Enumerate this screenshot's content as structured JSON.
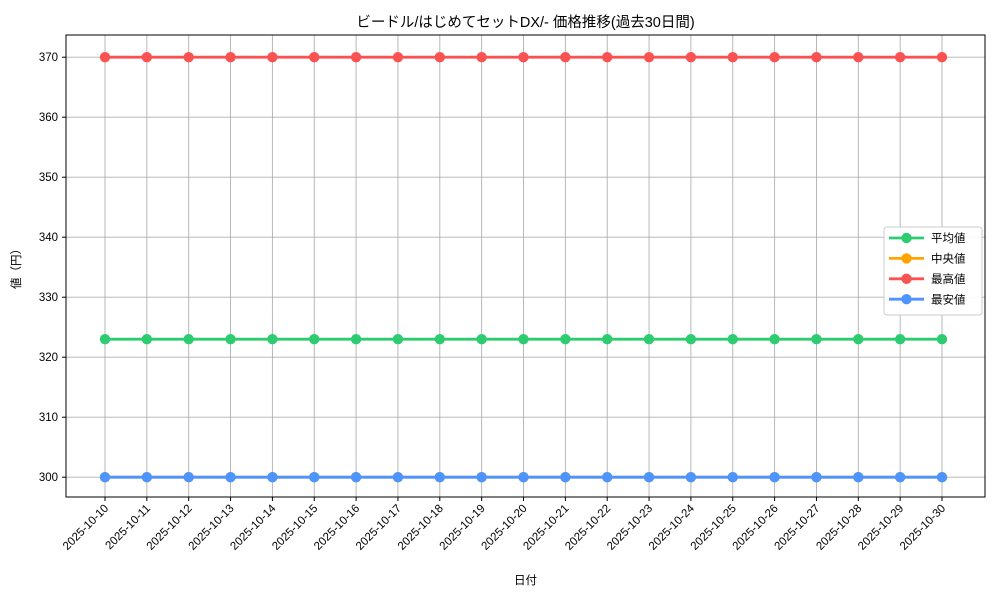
{
  "chart_data": {
    "type": "line",
    "title": "ビードル/はじめてセットDX/- 価格推移(過去30日間)",
    "xlabel": "日付",
    "ylabel": "値（円）",
    "grid": true,
    "background": "#ffffff",
    "grid_color": "#b0b0b0",
    "axis_color": "#000000",
    "legend_position": "center right",
    "legend_border_color": "#cccccc",
    "yticks": [
      300,
      310,
      320,
      330,
      340,
      350,
      360,
      370
    ],
    "ylim": [
      296.7,
      373.7
    ],
    "x": [
      "2025-10-10",
      "2025-10-11",
      "2025-10-12",
      "2025-10-13",
      "2025-10-14",
      "2025-10-15",
      "2025-10-16",
      "2025-10-17",
      "2025-10-18",
      "2025-10-19",
      "2025-10-20",
      "2025-10-21",
      "2025-10-22",
      "2025-10-23",
      "2025-10-24",
      "2025-10-25",
      "2025-10-26",
      "2025-10-27",
      "2025-10-28",
      "2025-10-29",
      "2025-10-30"
    ],
    "series": [
      {
        "name": "平均値",
        "key": "average",
        "color": "#2ecc71",
        "values": [
          323,
          323,
          323,
          323,
          323,
          323,
          323,
          323,
          323,
          323,
          323,
          323,
          323,
          323,
          323,
          323,
          323,
          323,
          323,
          323,
          323
        ]
      },
      {
        "name": "中央値",
        "key": "median",
        "color": "#ffa500",
        "hidden_behind": "最安値",
        "values": [
          300,
          300,
          300,
          300,
          300,
          300,
          300,
          300,
          300,
          300,
          300,
          300,
          300,
          300,
          300,
          300,
          300,
          300,
          300,
          300,
          300
        ]
      },
      {
        "name": "最高値",
        "key": "max",
        "color": "#fa5252",
        "values": [
          370,
          370,
          370,
          370,
          370,
          370,
          370,
          370,
          370,
          370,
          370,
          370,
          370,
          370,
          370,
          370,
          370,
          370,
          370,
          370,
          370
        ]
      },
      {
        "name": "最安値",
        "key": "min",
        "color": "#4d94ff",
        "values": [
          300,
          300,
          300,
          300,
          300,
          300,
          300,
          300,
          300,
          300,
          300,
          300,
          300,
          300,
          300,
          300,
          300,
          300,
          300,
          300,
          300
        ]
      }
    ]
  }
}
